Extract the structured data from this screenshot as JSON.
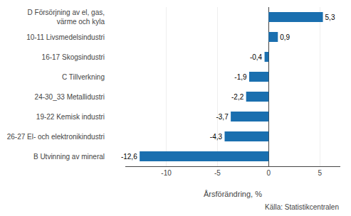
{
  "chart_data": {
    "type": "bar",
    "orientation": "horizontal",
    "categories": [
      "B Utvinning av mineral",
      "26-27 El- och elektronikindustri",
      "19-22 Kemisk industri",
      "24-30_33 Metallidustri",
      "C Tillverkning",
      "16-17 Skogsindustri",
      "10-11 Livsmedelsindustri",
      "D Försörjning av el, gas,\nvärme och kyla"
    ],
    "values": [
      -12.6,
      -4.3,
      -3.7,
      -2.2,
      -1.9,
      -0.4,
      0.9,
      5.3
    ],
    "value_labels": [
      "-12,6",
      "-4,3",
      "-3,7",
      "-2,2",
      "-1,9",
      "-0,4",
      "0,9",
      "5,3"
    ],
    "data_labels": true,
    "color": "#1a6faf",
    "xlabel": "Årsförändring, %",
    "annotations": [
      "Källa: Statistikcentralen"
    ],
    "xlim": [
      -14,
      7
    ],
    "xticks": [
      -10,
      -5,
      0,
      5
    ],
    "grid": true
  }
}
